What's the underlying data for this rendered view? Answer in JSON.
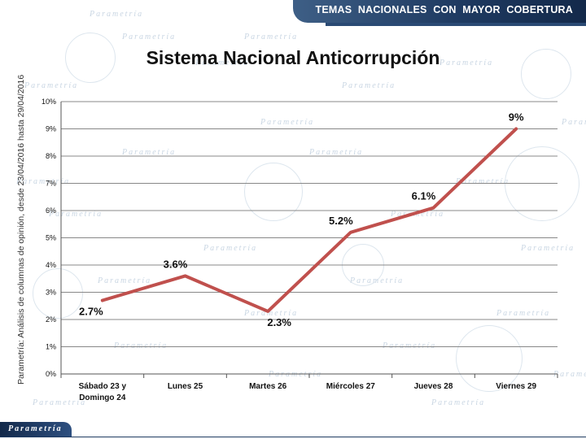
{
  "header": {
    "banner_text": "TEMAS NACIONALES CON MAYOR COBERTURA"
  },
  "side_label": "Parametría: Análisis de columnas de opinión, desde 23/04/2016 hasta 29/04/2016",
  "footer": {
    "logo_text": "Parametría"
  },
  "watermark_text": "Parametría",
  "colors": {
    "line": "#c0504d",
    "banner": "#1f3b62",
    "grid": "#888888"
  },
  "chart_data": {
    "type": "line",
    "title": "Sistema Nacional Anticorrupción",
    "categories": [
      "Sábado 23 y Domingo 24",
      "Lunes 25",
      "Martes 26",
      "Miércoles 27",
      "Jueves 28",
      "Viernes 29"
    ],
    "category_lines": [
      [
        "Sábado 23 y",
        "Domingo 24"
      ],
      [
        "Lunes 25"
      ],
      [
        "Martes 26"
      ],
      [
        "Miércoles 27"
      ],
      [
        "Jueves 28"
      ],
      [
        "Viernes 29"
      ]
    ],
    "values": [
      2.7,
      3.6,
      2.3,
      5.2,
      6.1,
      9.0
    ],
    "data_labels": [
      "2.7%",
      "3.6%",
      "2.3%",
      "5.2%",
      "6.1%",
      "9%"
    ],
    "y_ticks": [
      0,
      1,
      2,
      3,
      4,
      5,
      6,
      7,
      8,
      9,
      10
    ],
    "y_tick_labels": [
      "0%",
      "1%",
      "2%",
      "3%",
      "4%",
      "5%",
      "6%",
      "7%",
      "8%",
      "9%",
      "10%"
    ],
    "ylim": [
      0,
      10
    ],
    "grid": true,
    "legend": false
  }
}
